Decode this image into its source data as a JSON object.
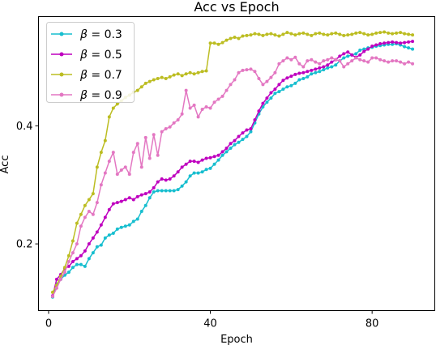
{
  "chart_data": {
    "type": "line",
    "title": "Acc vs Epoch",
    "xlabel": "Epoch",
    "ylabel": "Acc",
    "xlim": [
      -2.5,
      95.5
    ],
    "ylim": [
      0.087,
      0.585
    ],
    "xticks": [
      0,
      40,
      80
    ],
    "yticks": [
      0.2,
      0.4
    ],
    "ytick_labels": [
      "0.2",
      "0.4"
    ],
    "grid": false,
    "legend_position": "top-left",
    "x": [
      1,
      2,
      3,
      4,
      5,
      6,
      7,
      8,
      9,
      10,
      11,
      12,
      13,
      14,
      15,
      16,
      17,
      18,
      19,
      20,
      21,
      22,
      23,
      24,
      25,
      26,
      27,
      28,
      29,
      30,
      31,
      32,
      33,
      34,
      35,
      36,
      37,
      38,
      39,
      40,
      41,
      42,
      43,
      44,
      45,
      46,
      47,
      48,
      49,
      50,
      51,
      52,
      53,
      54,
      55,
      56,
      57,
      58,
      59,
      60,
      61,
      62,
      63,
      64,
      65,
      66,
      67,
      68,
      69,
      70,
      71,
      72,
      73,
      74,
      75,
      76,
      77,
      78,
      79,
      80,
      81,
      82,
      83,
      84,
      85,
      86,
      87,
      88,
      89,
      90
    ],
    "series": [
      {
        "name": "β = 0.3",
        "legend_symbol": "β",
        "legend_value": "0.3",
        "color": "#17becf",
        "values": [
          0.11,
          0.132,
          0.14,
          0.147,
          0.152,
          0.16,
          0.165,
          0.165,
          0.162,
          0.175,
          0.185,
          0.195,
          0.198,
          0.21,
          0.215,
          0.218,
          0.225,
          0.228,
          0.23,
          0.232,
          0.238,
          0.242,
          0.255,
          0.265,
          0.278,
          0.288,
          0.29,
          0.29,
          0.29,
          0.29,
          0.29,
          0.292,
          0.298,
          0.305,
          0.315,
          0.32,
          0.32,
          0.322,
          0.326,
          0.328,
          0.335,
          0.342,
          0.35,
          0.356,
          0.362,
          0.368,
          0.372,
          0.377,
          0.382,
          0.39,
          0.405,
          0.42,
          0.432,
          0.44,
          0.447,
          0.455,
          0.458,
          0.462,
          0.466,
          0.468,
          0.472,
          0.478,
          0.48,
          0.483,
          0.488,
          0.49,
          0.492,
          0.495,
          0.498,
          0.5,
          0.503,
          0.51,
          0.515,
          0.518,
          0.52,
          0.522,
          0.528,
          0.53,
          0.532,
          0.533,
          0.535,
          0.536,
          0.537,
          0.538,
          0.538,
          0.539,
          0.537,
          0.534,
          0.532,
          0.53
        ]
      },
      {
        "name": "β = 0.5",
        "legend_symbol": "β",
        "legend_value": "0.5",
        "color": "#bf00bf",
        "values": [
          0.112,
          0.14,
          0.148,
          0.158,
          0.162,
          0.17,
          0.175,
          0.18,
          0.188,
          0.2,
          0.21,
          0.22,
          0.232,
          0.245,
          0.258,
          0.268,
          0.27,
          0.272,
          0.275,
          0.278,
          0.275,
          0.28,
          0.283,
          0.285,
          0.288,
          0.295,
          0.305,
          0.31,
          0.308,
          0.31,
          0.315,
          0.322,
          0.33,
          0.335,
          0.34,
          0.34,
          0.338,
          0.342,
          0.345,
          0.346,
          0.348,
          0.35,
          0.356,
          0.362,
          0.37,
          0.375,
          0.382,
          0.388,
          0.393,
          0.395,
          0.41,
          0.425,
          0.438,
          0.447,
          0.456,
          0.462,
          0.47,
          0.477,
          0.481,
          0.484,
          0.487,
          0.489,
          0.49,
          0.492,
          0.494,
          0.496,
          0.498,
          0.5,
          0.503,
          0.508,
          0.512,
          0.518,
          0.522,
          0.525,
          0.52,
          0.516,
          0.52,
          0.526,
          0.53,
          0.535,
          0.537,
          0.539,
          0.54,
          0.541,
          0.542,
          0.541,
          0.54,
          0.541,
          0.542,
          0.543
        ]
      },
      {
        "name": "β = 0.7",
        "legend_symbol": "β",
        "legend_value": "0.7",
        "color": "#bcbd22",
        "values": [
          0.118,
          0.13,
          0.145,
          0.16,
          0.18,
          0.205,
          0.235,
          0.25,
          0.265,
          0.275,
          0.285,
          0.33,
          0.355,
          0.375,
          0.415,
          0.43,
          0.437,
          0.442,
          0.448,
          0.452,
          0.457,
          0.46,
          0.466,
          0.472,
          0.475,
          0.478,
          0.48,
          0.482,
          0.48,
          0.483,
          0.486,
          0.488,
          0.485,
          0.488,
          0.49,
          0.488,
          0.49,
          0.492,
          0.493,
          0.54,
          0.54,
          0.538,
          0.541,
          0.545,
          0.548,
          0.55,
          0.548,
          0.552,
          0.553,
          0.554,
          0.556,
          0.555,
          0.553,
          0.555,
          0.556,
          0.554,
          0.552,
          0.555,
          0.558,
          0.556,
          0.554,
          0.556,
          0.557,
          0.555,
          0.553,
          0.556,
          0.557,
          0.555,
          0.554,
          0.556,
          0.557,
          0.555,
          0.553,
          0.554,
          0.555,
          0.557,
          0.558,
          0.556,
          0.554,
          0.555,
          0.557,
          0.558,
          0.559,
          0.557,
          0.556,
          0.557,
          0.558,
          0.556,
          0.555,
          0.554
        ]
      },
      {
        "name": "β = 0.9",
        "legend_symbol": "β",
        "legend_value": "0.9",
        "color": "#e377c2",
        "values": [
          0.111,
          0.125,
          0.14,
          0.152,
          0.17,
          0.185,
          0.2,
          0.23,
          0.245,
          0.255,
          0.25,
          0.27,
          0.3,
          0.32,
          0.34,
          0.355,
          0.318,
          0.325,
          0.33,
          0.318,
          0.355,
          0.37,
          0.33,
          0.38,
          0.345,
          0.385,
          0.35,
          0.39,
          0.395,
          0.398,
          0.405,
          0.41,
          0.42,
          0.46,
          0.43,
          0.435,
          0.415,
          0.428,
          0.432,
          0.43,
          0.44,
          0.445,
          0.45,
          0.46,
          0.47,
          0.478,
          0.49,
          0.494,
          0.495,
          0.496,
          0.492,
          0.48,
          0.47,
          0.475,
          0.482,
          0.49,
          0.505,
          0.51,
          0.515,
          0.512,
          0.516,
          0.505,
          0.5,
          0.51,
          0.512,
          0.508,
          0.505,
          0.51,
          0.512,
          0.515,
          0.512,
          0.51,
          0.5,
          0.505,
          0.51,
          0.515,
          0.512,
          0.51,
          0.508,
          0.515,
          0.515,
          0.512,
          0.51,
          0.508,
          0.51,
          0.51,
          0.508,
          0.505,
          0.508,
          0.505
        ]
      }
    ]
  }
}
